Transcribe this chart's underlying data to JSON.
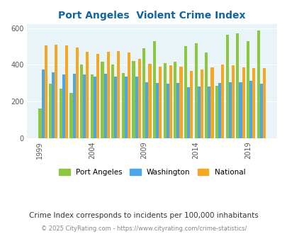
{
  "title": "Port Angeles  Violent Crime Index",
  "subtitle": "Crime Index corresponds to incidents per 100,000 inhabitants",
  "footer": "© 2025 CityRating.com - https://www.cityrating.com/crime-statistics/",
  "years": [
    1999,
    2000,
    2001,
    2002,
    2003,
    2004,
    2005,
    2006,
    2007,
    2008,
    2009,
    2010,
    2011,
    2012,
    2013,
    2014,
    2015,
    2016,
    2017,
    2018,
    2019,
    2020
  ],
  "port_angeles": [
    160,
    295,
    270,
    245,
    400,
    345,
    415,
    400,
    355,
    420,
    490,
    530,
    410,
    415,
    500,
    515,
    465,
    285,
    565,
    570,
    530,
    585
  ],
  "washington": [
    375,
    360,
    345,
    350,
    345,
    335,
    350,
    335,
    335,
    335,
    305,
    300,
    295,
    300,
    275,
    280,
    280,
    300,
    305,
    305,
    310,
    295
  ],
  "national": [
    505,
    510,
    505,
    495,
    470,
    460,
    470,
    475,
    465,
    430,
    405,
    390,
    395,
    390,
    365,
    375,
    385,
    400,
    395,
    385,
    380,
    380
  ],
  "colors": {
    "port_angeles": "#8dc63f",
    "washington": "#4da6e8",
    "national": "#f5a623"
  },
  "background_color": "#e8f4f8",
  "title_color": "#1464a0",
  "ylim": [
    0,
    620
  ],
  "yticks": [
    0,
    200,
    400,
    600
  ],
  "subtitle_color": "#333333",
  "footer_color": "#888888",
  "tick_years": [
    1999,
    2004,
    2009,
    2014,
    2019
  ]
}
